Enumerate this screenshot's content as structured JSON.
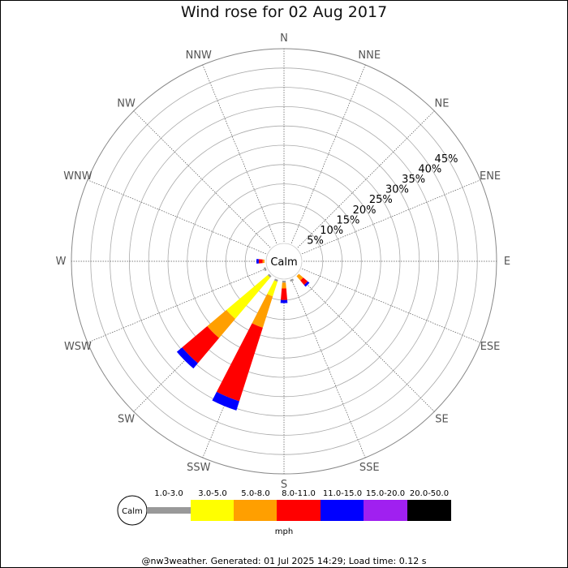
{
  "chart_data": {
    "type": "wind-rose",
    "title": "Wind rose for 02 Aug 2017",
    "calm_label": "Calm",
    "directions": [
      "N",
      "NNE",
      "NE",
      "ENE",
      "E",
      "ESE",
      "SE",
      "SSE",
      "S",
      "SSW",
      "SW",
      "WSW",
      "W",
      "WNW",
      "NW",
      "NNW"
    ],
    "radial_ticks": [
      5,
      10,
      15,
      20,
      25,
      30,
      35,
      40,
      45
    ],
    "radial_tick_labels": [
      "5%",
      "10%",
      "15%",
      "20%",
      "25%",
      "30%",
      "35%",
      "40%",
      "45%"
    ],
    "radial_max": 50,
    "unit": "mph",
    "speed_bins": [
      {
        "label": "",
        "color": "#999999"
      },
      {
        "label": "1.0-3.0",
        "color": "#ffff00"
      },
      {
        "label": "3.0-5.0",
        "color": "#ff9f00"
      },
      {
        "label": "5.0-8.0",
        "color": "#ff0000"
      },
      {
        "label": "8.0-11.0",
        "color": "#0000ff"
      },
      {
        "label": "11.0-15.0",
        "color": "#a020f0"
      },
      {
        "label": "15.0-20.0",
        "color": "#000000"
      },
      {
        "label": "20.0-50.0",
        "color": ""
      }
    ],
    "series": [
      {
        "direction": "SSW",
        "segments": [
          0.5,
          4.0,
          8.5,
          20.0,
          2.5
        ]
      },
      {
        "direction": "SW",
        "segments": [
          0.5,
          14.0,
          6.5,
          8.5,
          1.8
        ]
      },
      {
        "direction": "S",
        "segments": [
          0.5,
          0.0,
          1.5,
          3.0,
          0.8
        ]
      },
      {
        "direction": "SSE",
        "segments": [
          0.5,
          0.0,
          0.0,
          0.0,
          0.0
        ]
      },
      {
        "direction": "SE",
        "segments": [
          0.0,
          0.0,
          1.5,
          1.5,
          0.6
        ]
      },
      {
        "direction": "WSW",
        "segments": [
          0.5,
          0.0,
          0.0,
          0.0,
          0.0
        ]
      },
      {
        "direction": "W",
        "segments": [
          0.0,
          0.0,
          0.5,
          1.0,
          0.6
        ]
      }
    ]
  },
  "footer": "@nw3weather. Generated: 01 Jul 2025 14:29; Load time: 0.12 s"
}
